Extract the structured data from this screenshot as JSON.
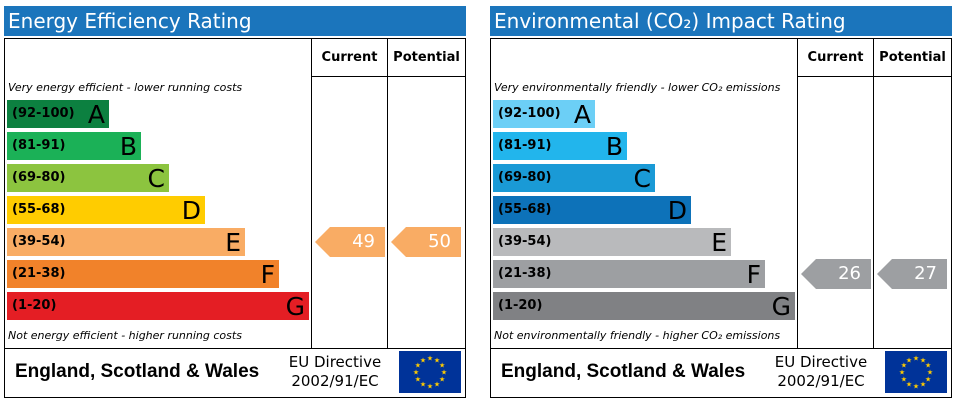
{
  "panels": [
    {
      "title": "Energy Efficiency Rating",
      "col_current": "Current",
      "col_potential": "Potential",
      "top_note": "Very energy efficient - lower running costs",
      "bottom_note": "Not energy efficient - higher running costs",
      "footer_region": "England, Scotland & Wales",
      "directive_line1": "EU Directive",
      "directive_line2": "2002/91/EC"
    },
    {
      "title": "Environmental (CO₂) Impact Rating",
      "col_current": "Current",
      "col_potential": "Potential",
      "top_note": "Very environmentally friendly - lower CO₂ emissions",
      "bottom_note": "Not environmentally friendly - higher CO₂ emissions",
      "footer_region": "England, Scotland & Wales",
      "directive_line1": "EU Directive",
      "directive_line2": "2002/91/EC"
    }
  ],
  "chart_data": [
    {
      "type": "bar",
      "title": "Energy Efficiency Rating",
      "categories": [
        "A",
        "B",
        "C",
        "D",
        "E",
        "F",
        "G"
      ],
      "ranges": [
        "(92-100)",
        "(81-91)",
        "(69-80)",
        "(55-68)",
        "(39-54)",
        "(21-38)",
        "(1-20)"
      ],
      "band_colors": [
        "#0c8040",
        "#1bb157",
        "#8cc43f",
        "#ffcc00",
        "#f9ac64",
        "#f1822a",
        "#e41e24"
      ],
      "current": 49,
      "potential": 50,
      "current_band": "E",
      "potential_band": "E",
      "arrow_color": "#f9ac64"
    },
    {
      "type": "bar",
      "title": "Environmental (CO₂) Impact Rating",
      "categories": [
        "A",
        "B",
        "C",
        "D",
        "E",
        "F",
        "G"
      ],
      "ranges": [
        "(92-100)",
        "(81-91)",
        "(69-80)",
        "(55-68)",
        "(39-54)",
        "(21-38)",
        "(1-20)"
      ],
      "band_colors": [
        "#6ccff6",
        "#22b5ec",
        "#1a9ad6",
        "#0d72b9",
        "#b9babc",
        "#9d9fa2",
        "#808184"
      ],
      "current": 26,
      "potential": 27,
      "current_band": "F",
      "potential_band": "F",
      "arrow_color": "#9d9fa2"
    }
  ]
}
